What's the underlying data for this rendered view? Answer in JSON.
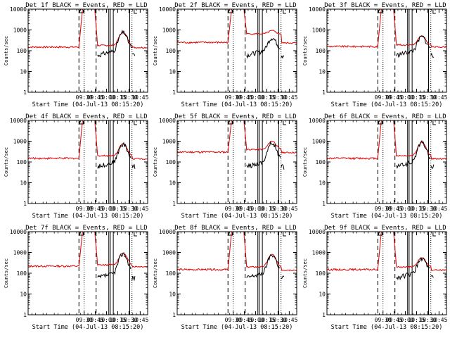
{
  "title_template": "Det {det} BLACK = Events, RED = LLD",
  "colors": {
    "events": "#000000",
    "lld": "#e00000",
    "axes": "#000000",
    "background": "#ffffff"
  },
  "chart_data": [
    {
      "type": "line",
      "det": "1",
      "title": "Det 1f BLACK = Events, RED = LLD",
      "xlabel": "Start Time (04-Jul-13 08:15:20)",
      "ylabel": "Counts/sec",
      "yscale": "log",
      "ylim": [
        1,
        10000
      ],
      "xlim": [
        "08:15",
        "10:55"
      ],
      "xticks": [
        "09:30",
        "09:45",
        "10:00",
        "10:15",
        "10:30",
        "10:45"
      ],
      "yticks": [
        "1",
        "10",
        "100",
        "1000",
        "10000"
      ],
      "lld_baseline": 150,
      "lld_post_peak": 180,
      "event_peak": 650,
      "series": [
        {
          "name": "Events",
          "color": "#000000"
        },
        {
          "name": "LLD",
          "color": "#e00000"
        }
      ]
    },
    {
      "type": "line",
      "det": "2",
      "title": "Det 2f BLACK = Events, RED = LLD",
      "xlabel": "Start Time (04-Jul-13 08:15:20)",
      "ylabel": "Counts/sec",
      "yscale": "log",
      "ylim": [
        1,
        10000
      ],
      "xlim": [
        "08:15",
        "10:55"
      ],
      "xticks": [
        "09:30",
        "09:45",
        "10:00",
        "10:15",
        "10:30",
        "10:45"
      ],
      "yticks": [
        "1",
        "10",
        "100",
        "1000",
        "10000"
      ],
      "lld_baseline": 250,
      "lld_post_peak": 650,
      "event_peak": 300,
      "series": [
        {
          "name": "Events",
          "color": "#000000"
        },
        {
          "name": "LLD",
          "color": "#e00000"
        }
      ]
    },
    {
      "type": "line",
      "det": "3",
      "title": "Det 3f BLACK = Events, RED = LLD",
      "xlabel": "Start Time (04-Jul-13 08:15:20)",
      "ylabel": "Counts/sec",
      "yscale": "log",
      "ylim": [
        1,
        10000
      ],
      "xlim": [
        "08:15",
        "10:55"
      ],
      "xticks": [
        "09:30",
        "09:45",
        "10:00",
        "10:15",
        "10:30",
        "10:45"
      ],
      "yticks": [
        "1",
        "10",
        "100",
        "1000",
        "10000"
      ],
      "lld_baseline": 160,
      "lld_post_peak": 190,
      "event_peak": 350,
      "series": [
        {
          "name": "Events",
          "color": "#000000"
        },
        {
          "name": "LLD",
          "color": "#e00000"
        }
      ]
    },
    {
      "type": "line",
      "det": "4",
      "title": "Det 4f BLACK = Events, RED = LLD",
      "xlabel": "Start Time (04-Jul-13 08:15:20)",
      "ylabel": "Counts/sec",
      "yscale": "log",
      "ylim": [
        1,
        10000
      ],
      "xlim": [
        "08:15",
        "10:55"
      ],
      "xticks": [
        "09:30",
        "09:45",
        "10:00",
        "10:15",
        "10:30",
        "10:45"
      ],
      "yticks": [
        "1",
        "10",
        "100",
        "1000",
        "10000"
      ],
      "lld_baseline": 150,
      "lld_post_peak": 200,
      "event_peak": 600,
      "series": [
        {
          "name": "Events",
          "color": "#000000"
        },
        {
          "name": "LLD",
          "color": "#e00000"
        }
      ]
    },
    {
      "type": "line",
      "det": "5",
      "title": "Det 5f BLACK = Events, RED = LLD",
      "xlabel": "Start Time (04-Jul-13 08:15:20)",
      "ylabel": "Counts/sec",
      "yscale": "log",
      "ylim": [
        1,
        10000
      ],
      "xlim": [
        "08:15",
        "10:55"
      ],
      "xticks": [
        "09:30",
        "09:45",
        "10:00",
        "10:15",
        "10:30",
        "10:45"
      ],
      "yticks": [
        "1",
        "10",
        "100",
        "1000",
        "10000"
      ],
      "lld_baseline": 300,
      "lld_post_peak": 400,
      "event_peak": 700,
      "series": [
        {
          "name": "Events",
          "color": "#000000"
        },
        {
          "name": "LLD",
          "color": "#e00000"
        }
      ]
    },
    {
      "type": "line",
      "det": "6",
      "title": "Det 6f BLACK = Events, RED = LLD",
      "xlabel": "Start Time (04-Jul-13 08:15:20)",
      "ylabel": "Counts/sec",
      "yscale": "log",
      "ylim": [
        1,
        10000
      ],
      "xlim": [
        "08:15",
        "10:55"
      ],
      "xticks": [
        "09:30",
        "09:45",
        "10:00",
        "10:15",
        "10:30",
        "10:45"
      ],
      "yticks": [
        "1",
        "10",
        "100",
        "1000",
        "10000"
      ],
      "lld_baseline": 150,
      "lld_post_peak": 200,
      "event_peak": 750,
      "series": [
        {
          "name": "Events",
          "color": "#000000"
        },
        {
          "name": "LLD",
          "color": "#e00000"
        }
      ]
    },
    {
      "type": "line",
      "det": "7",
      "title": "Det 7f BLACK = Events, RED = LLD",
      "xlabel": "Start Time (04-Jul-13 08:15:20)",
      "ylabel": "Counts/sec",
      "yscale": "log",
      "ylim": [
        1,
        10000
      ],
      "xlim": [
        "08:15",
        "10:55"
      ],
      "xticks": [
        "09:30",
        "09:45",
        "10:00",
        "10:15",
        "10:30",
        "10:45"
      ],
      "yticks": [
        "1",
        "10",
        "100",
        "1000",
        "10000"
      ],
      "lld_baseline": 220,
      "lld_post_peak": 250,
      "event_peak": 750,
      "series": [
        {
          "name": "Events",
          "color": "#000000"
        },
        {
          "name": "LLD",
          "color": "#e00000"
        }
      ]
    },
    {
      "type": "line",
      "det": "8",
      "title": "Det 8f BLACK = Events, RED = LLD",
      "xlabel": "Start Time (04-Jul-13 08:15:20)",
      "ylabel": "Counts/sec",
      "yscale": "log",
      "ylim": [
        1,
        10000
      ],
      "xlim": [
        "08:15",
        "10:55"
      ],
      "xticks": [
        "09:30",
        "09:45",
        "10:00",
        "10:15",
        "10:30",
        "10:45"
      ],
      "yticks": [
        "1",
        "10",
        "100",
        "1000",
        "10000"
      ],
      "lld_baseline": 150,
      "lld_post_peak": 200,
      "event_peak": 650,
      "series": [
        {
          "name": "Events",
          "color": "#000000"
        },
        {
          "name": "LLD",
          "color": "#e00000"
        }
      ]
    },
    {
      "type": "line",
      "det": "9",
      "title": "Det 9f BLACK = Events, RED = LLD",
      "xlabel": "Start Time (04-Jul-13 08:15:20)",
      "ylabel": "Counts/sec",
      "yscale": "log",
      "ylim": [
        1,
        10000
      ],
      "xlim": [
        "08:15",
        "10:55"
      ],
      "xticks": [
        "09:30",
        "09:45",
        "10:00",
        "10:15",
        "10:30",
        "10:45"
      ],
      "yticks": [
        "1",
        "10",
        "100",
        "1000",
        "10000"
      ],
      "lld_baseline": 150,
      "lld_post_peak": 200,
      "event_peak": 400,
      "series": [
        {
          "name": "Events",
          "color": "#000000"
        },
        {
          "name": "LLD",
          "color": "#e00000"
        }
      ]
    }
  ]
}
